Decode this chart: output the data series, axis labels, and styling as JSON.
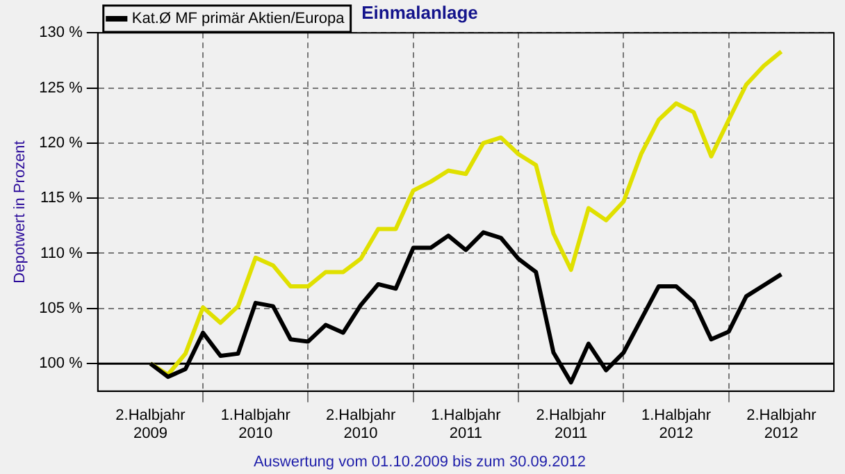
{
  "chart_data": {
    "type": "line",
    "title": "Einmalanlage",
    "ylabel": "Depotwert in Prozent",
    "annotations": [
      "Auswertung vom 01.10.2009 bis zum 30.09.2012"
    ],
    "x": [
      "2009-10",
      "2009-11",
      "2009-12",
      "2010-01",
      "2010-02",
      "2010-03",
      "2010-04",
      "2010-05",
      "2010-06",
      "2010-07",
      "2010-08",
      "2010-09",
      "2010-10",
      "2010-11",
      "2010-12",
      "2011-01",
      "2011-02",
      "2011-03",
      "2011-04",
      "2011-05",
      "2011-06",
      "2011-07",
      "2011-08",
      "2011-09",
      "2011-10",
      "2011-11",
      "2011-12",
      "2012-01",
      "2012-02",
      "2012-03",
      "2012-04",
      "2012-05",
      "2012-06",
      "2012-07",
      "2012-08",
      "2012-09",
      "2012-10"
    ],
    "series": [
      {
        "color": "#e0e000",
        "values": [
          100,
          99.0,
          100.9,
          105.1,
          103.7,
          105.2,
          109.6,
          108.9,
          107.0,
          107.0,
          108.3,
          108.3,
          109.5,
          112.2,
          112.2,
          115.7,
          116.5,
          117.5,
          117.2,
          120.0,
          120.5,
          119.0,
          118.0,
          111.8,
          108.5,
          114.1,
          113.0,
          114.7,
          119.0,
          122.1,
          123.6,
          122.8,
          118.8,
          122.1,
          125.3,
          127.0,
          128.3
        ]
      },
      {
        "name": "Kat.Ø MF primär Aktien/Europa",
        "color": "#000000",
        "values": [
          100,
          98.8,
          99.5,
          102.8,
          100.7,
          100.9,
          105.5,
          105.2,
          102.2,
          102.0,
          103.5,
          102.8,
          105.3,
          107.2,
          106.8,
          110.5,
          110.5,
          111.6,
          110.3,
          111.9,
          111.4,
          109.5,
          108.3,
          101.0,
          98.3,
          101.8,
          99.4,
          101.0,
          104.0,
          107.0,
          107.0,
          105.6,
          102.2,
          102.9,
          106.1,
          107.1,
          108.1
        ]
      }
    ],
    "xlim": [
      "2009-07",
      "2013-01"
    ],
    "xticks": [
      {
        "value": "2009-10",
        "label": "2.Halbjahr 2009"
      },
      {
        "value": "2010-01",
        "label": null
      },
      {
        "value": "2010-04",
        "label": "1.Halbjahr 2010"
      },
      {
        "value": "2010-07",
        "label": null
      },
      {
        "value": "2010-10",
        "label": "2.Halbjahr 2010"
      },
      {
        "value": "2011-01",
        "label": null
      },
      {
        "value": "2011-04",
        "label": "1.Halbjahr 2011"
      },
      {
        "value": "2011-07",
        "label": null
      },
      {
        "value": "2011-10",
        "label": "2.Halbjahr 2011"
      },
      {
        "value": "2012-01",
        "label": null
      },
      {
        "value": "2012-04",
        "label": "1.Halbjahr 2012"
      },
      {
        "value": "2012-07",
        "label": null
      },
      {
        "value": "2012-10",
        "label": "2.Halbjahr 2012"
      }
    ],
    "ylim": [
      97.5,
      130
    ],
    "yticks": [
      {
        "value": 100,
        "label": "100 %"
      },
      {
        "value": 105,
        "label": "105 %"
      },
      {
        "value": 110,
        "label": "110 %"
      },
      {
        "value": 115,
        "label": "115 %"
      },
      {
        "value": 120,
        "label": "120 %"
      },
      {
        "value": 125,
        "label": "125 %"
      },
      {
        "value": 130,
        "label": "130 %"
      }
    ],
    "ref_lines": [
      {
        "axis": "y",
        "value": 100,
        "color": "#000000"
      }
    ],
    "grid": true,
    "legend": "top left",
    "marker": "none",
    "line_style": "solid"
  }
}
